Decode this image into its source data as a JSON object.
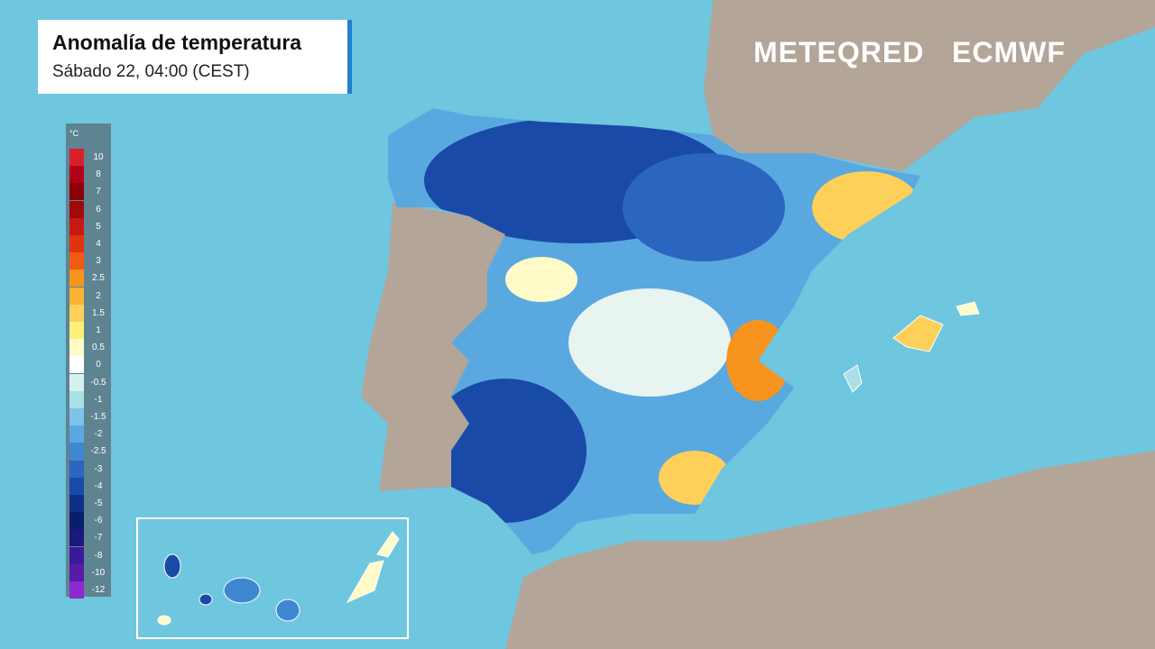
{
  "header": {
    "title": "Anomalía de temperatura",
    "subtitle": "Sábado 22, 04:00 (CEST)"
  },
  "logos": [
    "METEQRED",
    "ECMWF"
  ],
  "legend": {
    "unit": "°C",
    "levels": [
      10,
      8,
      7,
      6,
      5,
      4,
      3,
      2.5,
      2,
      1.5,
      1,
      0.5,
      0,
      -0.5,
      -1,
      -1.5,
      -2,
      -2.5,
      -3,
      -4,
      -5,
      -6,
      -7,
      -8,
      -10,
      -12
    ],
    "colors": [
      "#d8202a",
      "#b0001a",
      "#8a0008",
      "#a00a0a",
      "#c41a12",
      "#de3410",
      "#f05a14",
      "#f7941d",
      "#f9b233",
      "#fdd05a",
      "#fff07a",
      "#fffac8",
      "#ffffff",
      "#d6f2ef",
      "#a8e0e6",
      "#7cc4e8",
      "#5aa8e0",
      "#3d88d0",
      "#2a66c0",
      "#1a4aa8",
      "#0f3088",
      "#0a1f6a",
      "#1a1a7a",
      "#3a1a98",
      "#5a1aa8",
      "#8a2ad0"
    ]
  }
}
